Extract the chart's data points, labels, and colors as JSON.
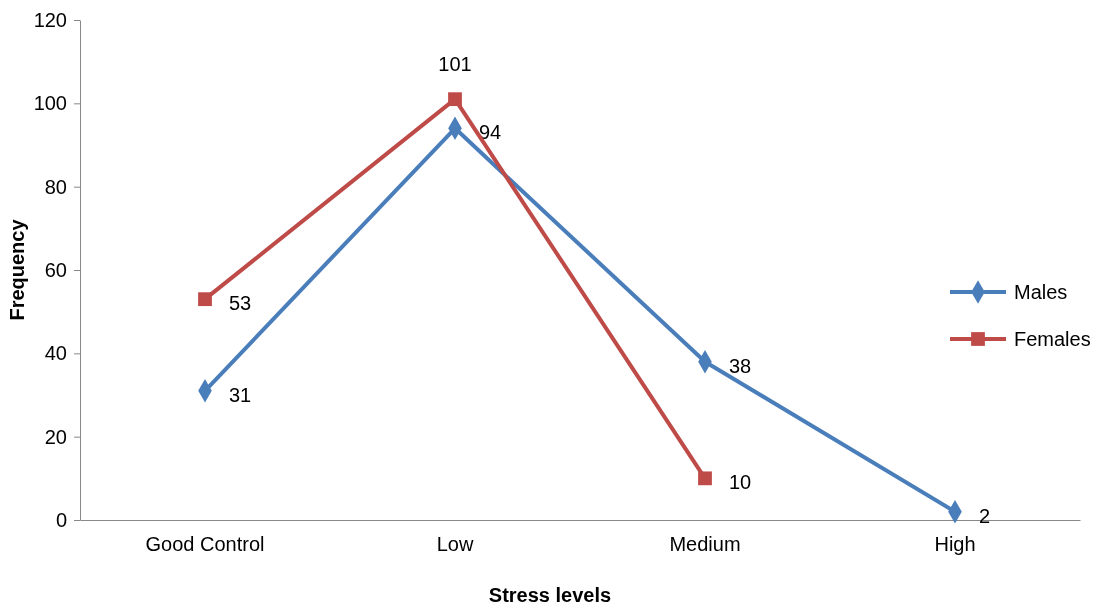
{
  "chart_data": {
    "type": "line",
    "xlabel": "Stress levels",
    "ylabel": "Frequency",
    "categories": [
      "Good Control",
      "Low",
      "Medium",
      "High"
    ],
    "series": [
      {
        "name": "Males",
        "color": "#4a7ebb",
        "marker": "diamond",
        "values": [
          31,
          94,
          38,
          2
        ]
      },
      {
        "name": "Females",
        "color": "#be4b48",
        "marker": "square",
        "values": [
          53,
          101,
          10,
          null
        ]
      }
    ],
    "ylim": [
      0,
      120
    ],
    "yticks": [
      0,
      20,
      40,
      60,
      80,
      100,
      120
    ],
    "data_labels": true,
    "legend": "right",
    "grid": false,
    "line_style": "solid"
  }
}
